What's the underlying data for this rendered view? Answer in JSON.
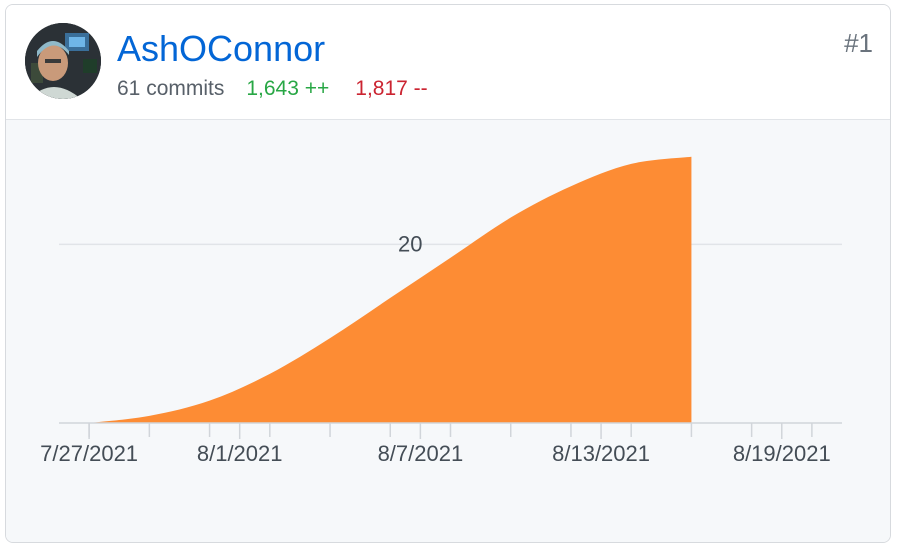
{
  "contributor": {
    "username": "AshOConnor",
    "rank": "#1",
    "commits_label": "61 commits",
    "additions_label": "1,643 ++",
    "deletions_label": "1,817 --"
  },
  "colors": {
    "area_fill": "#fd8c34",
    "username_link": "#0366d6",
    "additions": "#28a745",
    "deletions": "#cb2431",
    "plot_background": "#f6f8fa",
    "gridline": "#e1e4e8"
  },
  "chart_data": {
    "type": "area",
    "title": "",
    "xlabel": "",
    "ylabel": "",
    "grid": true,
    "legend": "none",
    "x_tick_labels": [
      "7/27/2021",
      "8/1/2021",
      "8/7/2021",
      "8/13/2021",
      "8/19/2021"
    ],
    "y_tick_labels": [
      "20"
    ],
    "x_range": [
      "7/26/2021",
      "8/21/2021"
    ],
    "y_range": [
      0,
      30
    ],
    "series": [
      {
        "x": [
          "7/27/2021",
          "7/29/2021",
          "7/31/2021",
          "8/2/2021",
          "8/4/2021",
          "8/6/2021",
          "8/8/2021",
          "8/10/2021",
          "8/12/2021",
          "8/14/2021",
          "8/16/2021"
        ],
        "values": [
          0,
          0.8,
          2.5,
          5.5,
          9.5,
          14,
          18.5,
          23,
          26.5,
          29,
          29.8
        ]
      }
    ]
  }
}
